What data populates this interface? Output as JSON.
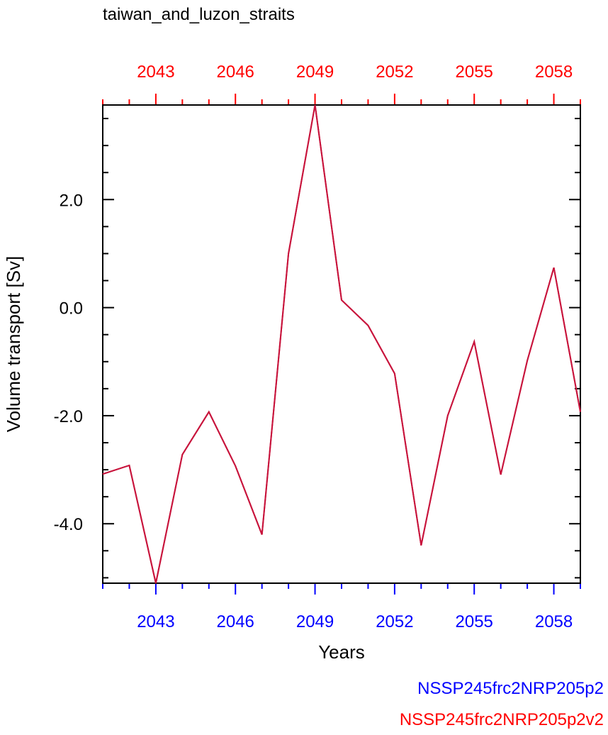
{
  "chart_data": {
    "type": "line",
    "title": "taiwan_and_luzon_straits",
    "xlabel": "Years",
    "ylabel": "Volume transport [Sv]",
    "xlim": [
      2041,
      2059
    ],
    "ylim": [
      -5.1,
      3.75
    ],
    "x_ticks": [
      2043,
      2046,
      2049,
      2052,
      2055,
      2058
    ],
    "x_tick_labels": [
      "2043",
      "2046",
      "2049",
      "2052",
      "2055",
      "2058"
    ],
    "y_ticks": [
      -4.0,
      -2.0,
      0.0,
      2.0
    ],
    "y_tick_labels": [
      "-4.0",
      "-2.0",
      "0.0",
      "2.0"
    ],
    "x": [
      2041,
      2042,
      2043,
      2044,
      2045,
      2046,
      2047,
      2048,
      2049,
      2050,
      2051,
      2052,
      2053,
      2054,
      2055,
      2056,
      2057,
      2058,
      2059
    ],
    "series": [
      {
        "name": "NSSP245frc2NRP205p2",
        "color": "#0000ff",
        "values": [
          -3.08,
          -2.92,
          -5.1,
          -2.72,
          -1.93,
          -2.93,
          -4.2,
          1.0,
          3.75,
          0.14,
          -0.33,
          -1.22,
          -4.4,
          -2.0,
          -0.63,
          -3.09,
          -0.98,
          0.74,
          -1.93
        ]
      },
      {
        "name": "NSSP245frc2NRP205p2v2",
        "color": "#ff0000",
        "values": [
          -3.08,
          -2.92,
          -5.1,
          -2.72,
          -1.93,
          -2.93,
          -4.2,
          1.0,
          3.75,
          0.14,
          -0.33,
          -1.22,
          -4.4,
          -2.0,
          -0.63,
          -3.09,
          -0.98,
          0.74,
          -1.93
        ]
      }
    ],
    "line_color": "#c8143c",
    "bottom_axis_color": "#0000ff",
    "top_axis_color": "#ff0000",
    "legend_placement": "bottom-right",
    "grid": false
  }
}
